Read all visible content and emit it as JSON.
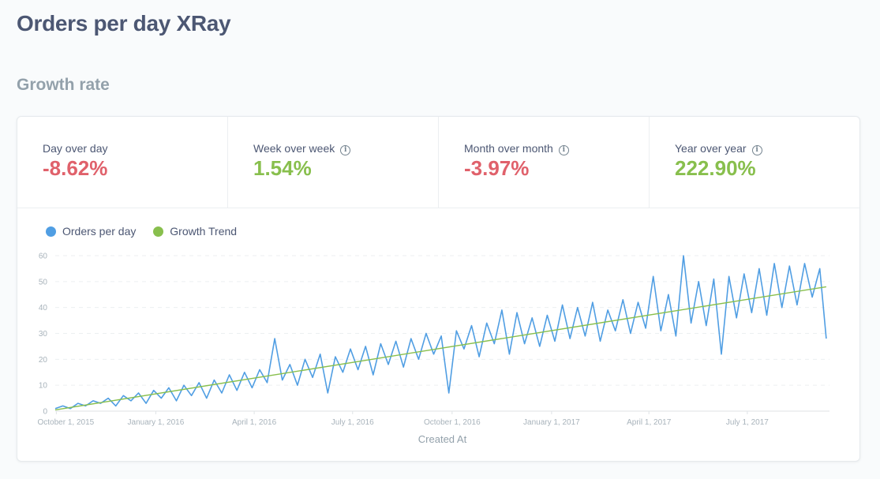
{
  "page_title": "Orders per day XRay",
  "section_title": "Growth rate",
  "metrics": [
    {
      "label": "Day over day",
      "value": "-8.62%",
      "sign": "neg",
      "info": false
    },
    {
      "label": "Week over week",
      "value": "1.54%",
      "sign": "pos",
      "info": true
    },
    {
      "label": "Month over month",
      "value": "-3.97%",
      "sign": "neg",
      "info": true
    },
    {
      "label": "Year over year",
      "value": "222.90%",
      "sign": "pos",
      "info": true
    }
  ],
  "legend": [
    {
      "label": "Orders per day",
      "color": "#509ee3"
    },
    {
      "label": "Growth Trend",
      "color": "#88bf4d"
    }
  ],
  "chart_data": {
    "type": "line",
    "xlabel": "Created At",
    "ylabel": "",
    "ylim": [
      0,
      60
    ],
    "xlim": [
      "2015-09-30",
      "2017-09-15"
    ],
    "y_ticks": [
      0,
      10,
      20,
      30,
      40,
      50,
      60
    ],
    "x_ticks": [
      {
        "date": "2015-10-01",
        "label": "October 1, 2015"
      },
      {
        "date": "2016-01-01",
        "label": "January 1, 2016"
      },
      {
        "date": "2016-04-01",
        "label": "April 1, 2016"
      },
      {
        "date": "2016-07-01",
        "label": "July 1, 2016"
      },
      {
        "date": "2016-10-01",
        "label": "October 1, 2016"
      },
      {
        "date": "2017-01-01",
        "label": "January 1, 2017"
      },
      {
        "date": "2017-04-01",
        "label": "April 1, 2017"
      },
      {
        "date": "2017-07-01",
        "label": "July 1, 2017"
      }
    ],
    "series": [
      {
        "name": "Orders per day",
        "color": "#509ee3",
        "points": [
          [
            "2015-09-30",
            1
          ],
          [
            "2015-10-07",
            2
          ],
          [
            "2015-10-14",
            1
          ],
          [
            "2015-10-21",
            3
          ],
          [
            "2015-10-28",
            2
          ],
          [
            "2015-11-04",
            4
          ],
          [
            "2015-11-11",
            3
          ],
          [
            "2015-11-18",
            5
          ],
          [
            "2015-11-25",
            2
          ],
          [
            "2015-12-02",
            6
          ],
          [
            "2015-12-09",
            4
          ],
          [
            "2015-12-16",
            7
          ],
          [
            "2015-12-23",
            3
          ],
          [
            "2015-12-30",
            8
          ],
          [
            "2016-01-06",
            5
          ],
          [
            "2016-01-13",
            9
          ],
          [
            "2016-01-20",
            4
          ],
          [
            "2016-01-27",
            10
          ],
          [
            "2016-02-03",
            6
          ],
          [
            "2016-02-10",
            11
          ],
          [
            "2016-02-17",
            5
          ],
          [
            "2016-02-24",
            12
          ],
          [
            "2016-03-02",
            7
          ],
          [
            "2016-03-09",
            14
          ],
          [
            "2016-03-16",
            8
          ],
          [
            "2016-03-23",
            15
          ],
          [
            "2016-03-30",
            9
          ],
          [
            "2016-04-06",
            16
          ],
          [
            "2016-04-13",
            11
          ],
          [
            "2016-04-20",
            28
          ],
          [
            "2016-04-27",
            12
          ],
          [
            "2016-05-04",
            18
          ],
          [
            "2016-05-11",
            10
          ],
          [
            "2016-05-18",
            20
          ],
          [
            "2016-05-25",
            13
          ],
          [
            "2016-06-01",
            22
          ],
          [
            "2016-06-08",
            7
          ],
          [
            "2016-06-15",
            21
          ],
          [
            "2016-06-22",
            15
          ],
          [
            "2016-06-29",
            24
          ],
          [
            "2016-07-06",
            16
          ],
          [
            "2016-07-13",
            25
          ],
          [
            "2016-07-20",
            14
          ],
          [
            "2016-07-27",
            26
          ],
          [
            "2016-08-03",
            18
          ],
          [
            "2016-08-10",
            27
          ],
          [
            "2016-08-17",
            17
          ],
          [
            "2016-08-24",
            28
          ],
          [
            "2016-08-31",
            20
          ],
          [
            "2016-09-07",
            30
          ],
          [
            "2016-09-14",
            22
          ],
          [
            "2016-09-21",
            29
          ],
          [
            "2016-09-28",
            7
          ],
          [
            "2016-10-05",
            31
          ],
          [
            "2016-10-12",
            24
          ],
          [
            "2016-10-19",
            33
          ],
          [
            "2016-10-26",
            21
          ],
          [
            "2016-11-02",
            34
          ],
          [
            "2016-11-09",
            26
          ],
          [
            "2016-11-16",
            39
          ],
          [
            "2016-11-23",
            22
          ],
          [
            "2016-11-30",
            38
          ],
          [
            "2016-12-07",
            26
          ],
          [
            "2016-12-14",
            36
          ],
          [
            "2016-12-21",
            25
          ],
          [
            "2016-12-28",
            37
          ],
          [
            "2017-01-04",
            27
          ],
          [
            "2017-01-11",
            41
          ],
          [
            "2017-01-18",
            28
          ],
          [
            "2017-01-25",
            40
          ],
          [
            "2017-02-01",
            29
          ],
          [
            "2017-02-08",
            42
          ],
          [
            "2017-02-15",
            27
          ],
          [
            "2017-02-22",
            39
          ],
          [
            "2017-03-01",
            31
          ],
          [
            "2017-03-08",
            43
          ],
          [
            "2017-03-15",
            30
          ],
          [
            "2017-03-22",
            42
          ],
          [
            "2017-03-29",
            32
          ],
          [
            "2017-04-05",
            52
          ],
          [
            "2017-04-12",
            31
          ],
          [
            "2017-04-19",
            45
          ],
          [
            "2017-04-26",
            29
          ],
          [
            "2017-05-03",
            60
          ],
          [
            "2017-05-10",
            34
          ],
          [
            "2017-05-17",
            50
          ],
          [
            "2017-05-24",
            33
          ],
          [
            "2017-05-31",
            51
          ],
          [
            "2017-06-07",
            22
          ],
          [
            "2017-06-14",
            52
          ],
          [
            "2017-06-21",
            36
          ],
          [
            "2017-06-28",
            53
          ],
          [
            "2017-07-05",
            38
          ],
          [
            "2017-07-12",
            55
          ],
          [
            "2017-07-19",
            37
          ],
          [
            "2017-07-26",
            57
          ],
          [
            "2017-08-02",
            40
          ],
          [
            "2017-08-09",
            56
          ],
          [
            "2017-08-16",
            41
          ],
          [
            "2017-08-23",
            57
          ],
          [
            "2017-08-30",
            44
          ],
          [
            "2017-09-06",
            55
          ],
          [
            "2017-09-12",
            28
          ]
        ]
      },
      {
        "name": "Growth Trend",
        "color": "#88bf4d",
        "points": [
          [
            "2015-09-30",
            0.5
          ],
          [
            "2017-09-12",
            48
          ]
        ]
      }
    ],
    "grid": true,
    "legend_position": "top-left"
  }
}
